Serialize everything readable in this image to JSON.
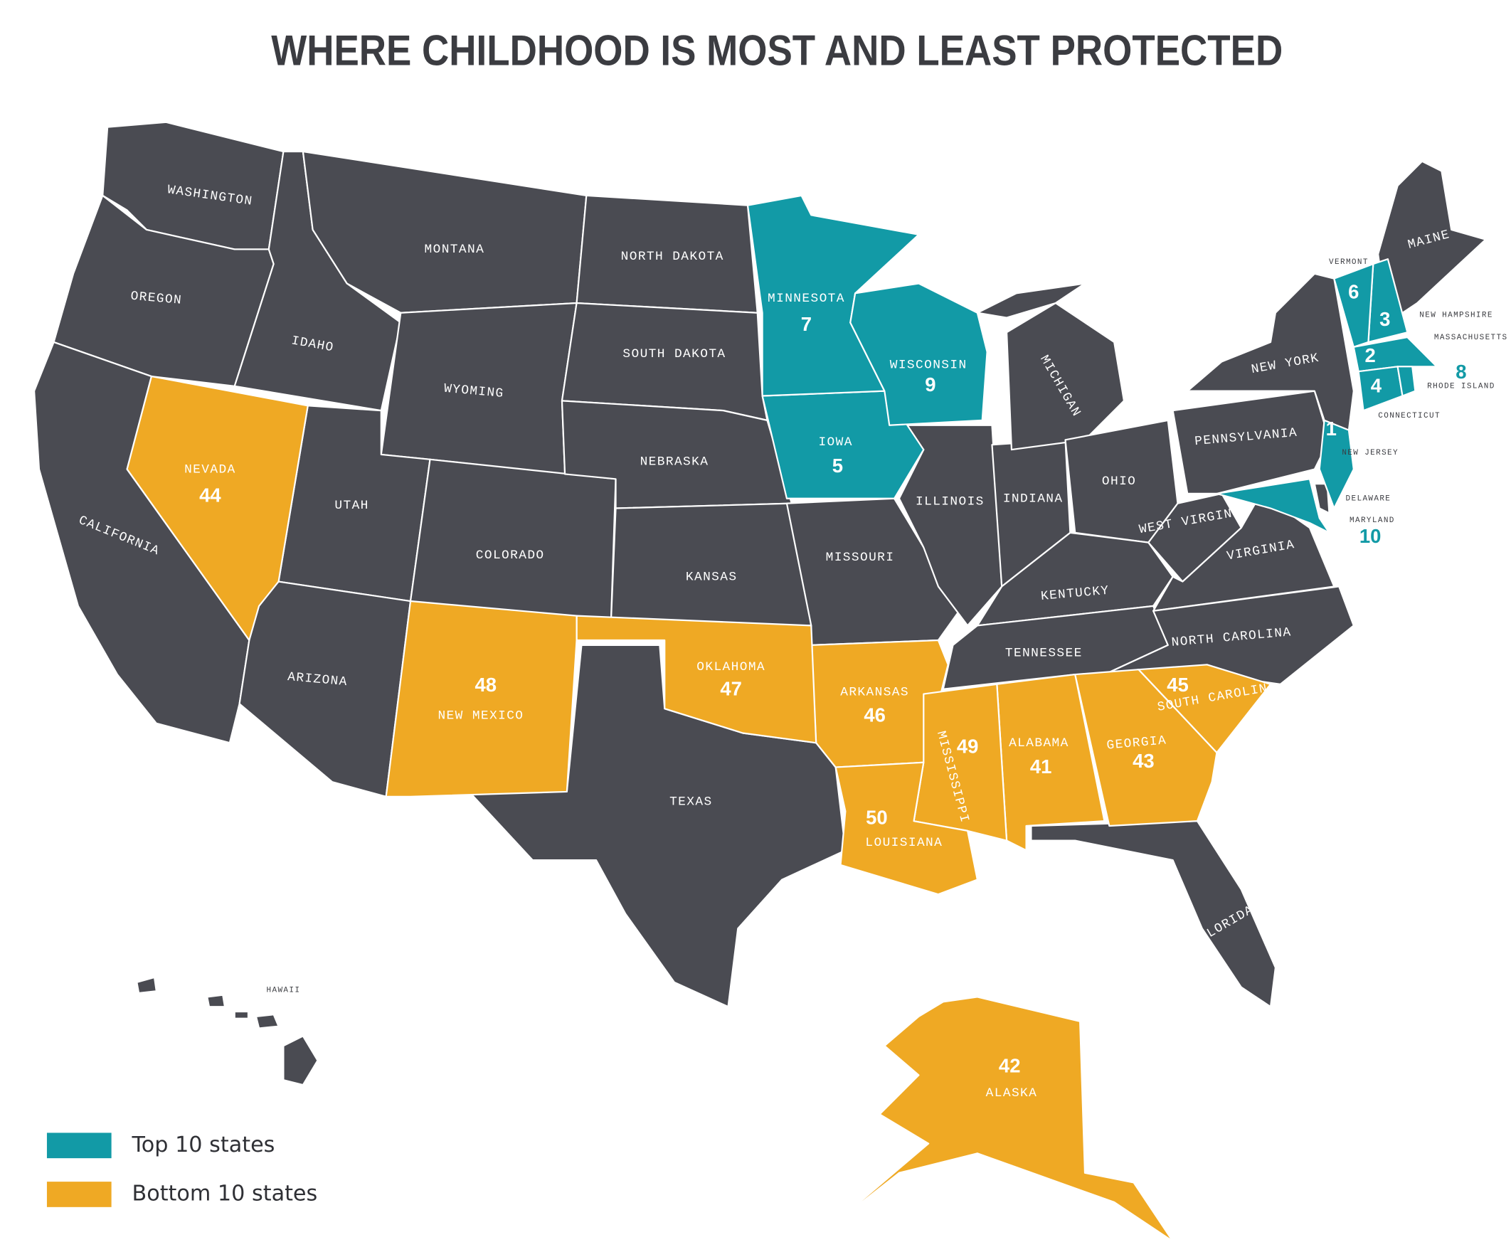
{
  "title": "WHERE CHILDHOOD IS MOST AND LEAST PROTECTED",
  "other_color": "#4a4b52",
  "other_states": [
    "WASHINGTON",
    "OREGON",
    "CALIFORNIA",
    "IDAHO",
    "MONTANA",
    "WYOMING",
    "UTAH",
    "ARIZONA",
    "COLORADO",
    "NORTH DAKOTA",
    "SOUTH DAKOTA",
    "NEBRASKA",
    "KANSAS",
    "TEXAS",
    "MISSOURI",
    "ILLINOIS",
    "INDIANA",
    "MICHIGAN",
    "OHIO",
    "KENTUCKY",
    "TENNESSEE",
    "WEST VIRGINIA",
    "VIRGINIA",
    "NORTH CAROLINA",
    "PENNSYLVANIA",
    "NEW YORK",
    "MAINE",
    "FLORIDA",
    "HAWAII",
    "DELAWARE"
  ],
  "groups": [
    {
      "label": "Top 10 states",
      "color": "#129aa6",
      "states": [
        {
          "name": "NEW JERSEY",
          "rank": 1
        },
        {
          "name": "MASSACHUSETTS",
          "rank": 2
        },
        {
          "name": "NEW HAMPSHIRE",
          "rank": 3
        },
        {
          "name": "CONNECTICUT",
          "rank": 4
        },
        {
          "name": "IOWA",
          "rank": 5
        },
        {
          "name": "VERMONT",
          "rank": 6
        },
        {
          "name": "MINNESOTA",
          "rank": 7
        },
        {
          "name": "RHODE ISLAND",
          "rank": 8
        },
        {
          "name": "WISCONSIN",
          "rank": 9
        },
        {
          "name": "MARYLAND",
          "rank": 10
        }
      ]
    },
    {
      "label": "Bottom 10 states",
      "color": "#efa924",
      "states": [
        {
          "name": "ALABAMA",
          "rank": 41
        },
        {
          "name": "ALASKA",
          "rank": 42
        },
        {
          "name": "GEORGIA",
          "rank": 43
        },
        {
          "name": "NEVADA",
          "rank": 44
        },
        {
          "name": "SOUTH CAROLINA",
          "rank": 45
        },
        {
          "name": "ARKANSAS",
          "rank": 46
        },
        {
          "name": "OKLAHOMA",
          "rank": 47
        },
        {
          "name": "NEW MEXICO",
          "rank": 48
        },
        {
          "name": "MISSISSIPPI",
          "rank": 49
        },
        {
          "name": "LOUISIANA",
          "rank": 50
        }
      ]
    }
  ]
}
